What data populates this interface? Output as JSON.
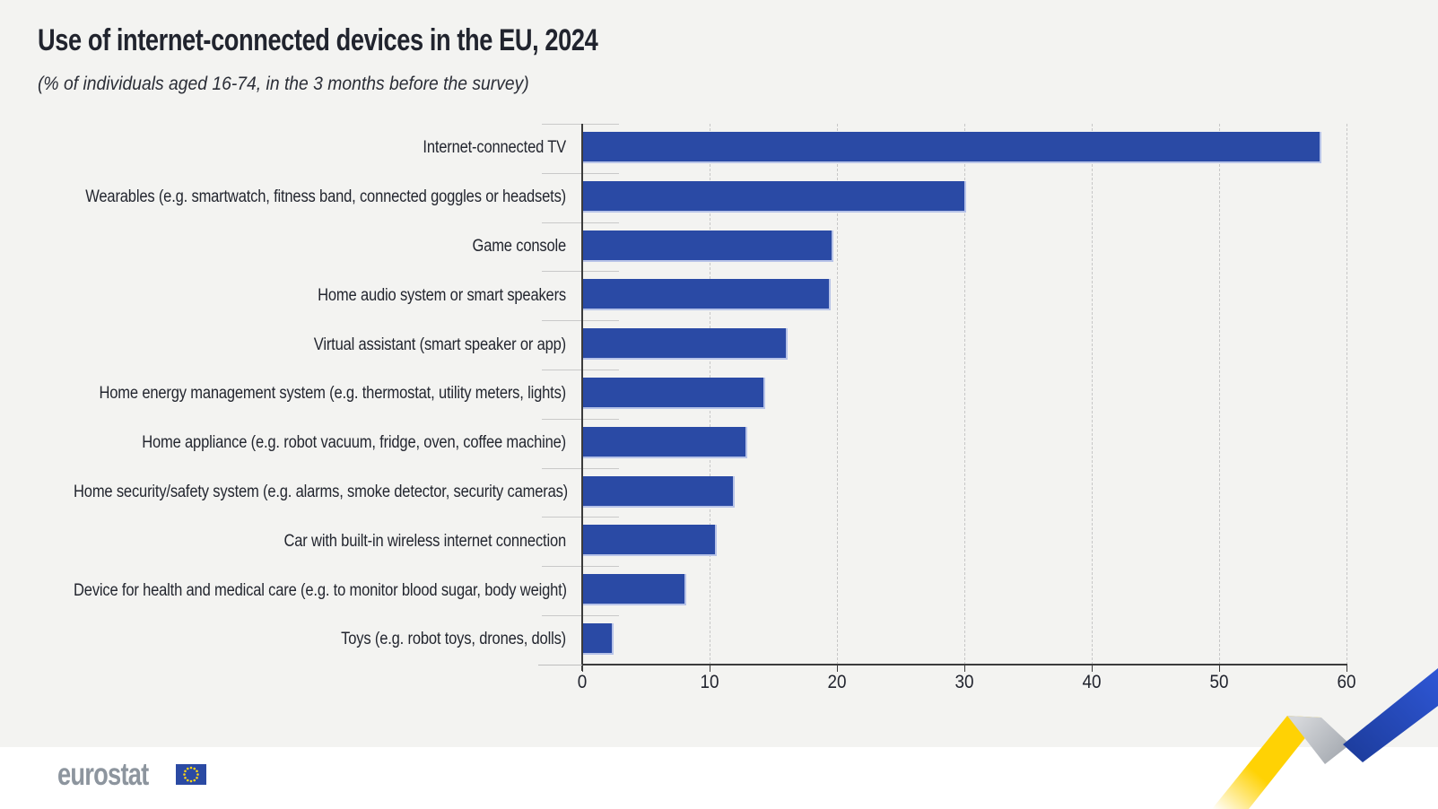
{
  "title": "Use of internet-connected devices in the EU, 2024",
  "subtitle": "(% of individuals aged 16-74, in the 3 months before the survey)",
  "chart_data": {
    "type": "bar",
    "orientation": "horizontal",
    "title": "Use of internet-connected devices in the EU, 2024",
    "subtitle": "(% of individuals aged 16-74, in the 3 months before the survey)",
    "categories": [
      "Internet-connected TV",
      "Wearables (e.g. smartwatch, fitness band, connected goggles or headsets)",
      "Game console",
      "Home audio system or smart speakers",
      "Virtual assistant (smart speaker or app)",
      "Home energy management system (e.g. thermostat, utility meters, lights)",
      "Home appliance (e.g. robot vacuum, fridge, oven, coffee machine)",
      "Home security/safety system (e.g. alarms, smoke detector, security cameras)",
      "Car with built-in wireless internet connection",
      "Device for health and medical care (e.g. to monitor blood sugar, body weight)",
      "Toys (e.g. robot toys, drones, dolls)"
    ],
    "values": [
      57.9,
      30.0,
      19.6,
      19.4,
      16.0,
      14.2,
      12.8,
      11.8,
      10.4,
      8.0,
      2.3
    ],
    "xlabel": "",
    "ylabel": "",
    "xlim": [
      0,
      60
    ],
    "xticks": [
      0,
      10,
      20,
      30,
      40,
      50,
      60
    ],
    "grid": "vertical-dashed",
    "legend": "none",
    "bar_color": "#2a4aa5",
    "bar_edge_color": "#b7c3e8"
  },
  "footer": {
    "logo_text": "eurostat",
    "flag_icon": "eu-flag-icon",
    "ribbon_icon": "zigzag-ribbon-icon"
  },
  "colors": {
    "background": "#f3f3f1",
    "footer_background": "#ffffff",
    "text": "#21242e",
    "gridline": "#c7c7c7",
    "axis": "#3c3c3c",
    "logo_gray": "#8d959e",
    "eu_flag_blue": "#2b4aa3",
    "eu_star_yellow": "#ffd617",
    "ribbon_yellow": "#ffd204",
    "ribbon_gray": "#aeb2b8",
    "ribbon_blue": "#2e55d2"
  }
}
